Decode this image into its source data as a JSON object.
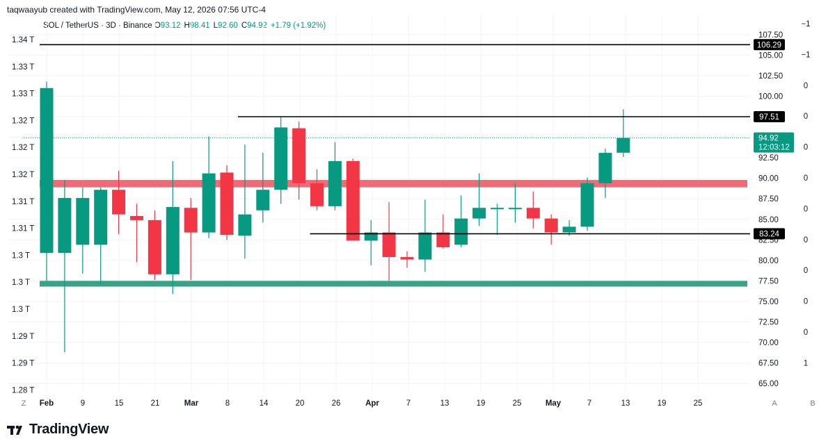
{
  "header": {
    "creator": "taqwaayub created with TradingView.com, May 12, 2026 07:56 UTC-4"
  },
  "legend": {
    "symbol": "SOL / TetherUS · 3D · Binance",
    "o_label": "O",
    "o_value": "93.12",
    "h_label": "H",
    "h_value": "98.41",
    "l_label": "L",
    "l_value": "92.60",
    "c_label": "C",
    "c_value": "94.92",
    "change": "+1.79 (+1.92%)"
  },
  "brand": {
    "name": "TradingView"
  },
  "chart_data": {
    "type": "candlestick",
    "colors": {
      "up": "#089981",
      "down": "#f23645",
      "support_zone": "#2e9e80",
      "resistance_zone": "#f0636f",
      "level_line": "#000000"
    },
    "x_axis": {
      "ticks": [
        "Feb",
        "9",
        "15",
        "21",
        "Mar",
        "8",
        "14",
        "20",
        "26",
        "Apr",
        "7",
        "13",
        "19",
        "25",
        "May",
        "7",
        "13",
        "19",
        "25"
      ],
      "bold_ticks": [
        "Feb",
        "Mar",
        "Apr",
        "May"
      ],
      "left_corner": "Z",
      "right_corner_a": "A",
      "right_corner_b": "B"
    },
    "price_axis": {
      "ticks": [
        "107.50",
        "105.00",
        "102.50",
        "100.00",
        "97.50",
        "95.00",
        "92.50",
        "90.00",
        "87.50",
        "85.00",
        "82.50",
        "80.00",
        "77.50",
        "75.00",
        "72.50",
        "70.00",
        "67.50",
        "65.00"
      ],
      "range": [
        65.0,
        107.5
      ]
    },
    "left_axis": {
      "ticks": [
        "1.34 T",
        "1.33 T",
        "1.33 T",
        "1.32 T",
        "1.32 T",
        "1.32 T",
        "1.31 T",
        "1.31 T",
        "1.3 T",
        "1.3 T",
        "1.3 T",
        "1.29 T",
        "1.29 T",
        "1.28 T"
      ]
    },
    "far_right_axis": {
      "ticks": [
        "−1",
        "−1",
        "0",
        "0",
        "0",
        "0",
        "0",
        "0",
        "0",
        "0",
        "0",
        "1"
      ]
    },
    "price_labels": {
      "top_line": "106.29",
      "upper_line": "97.51",
      "lower_line": "83.24",
      "last_price": "94.92",
      "countdown": "12:03:12"
    },
    "levels": [
      {
        "name": "top-line",
        "price": 106.29,
        "from": 0
      },
      {
        "name": "upper-line",
        "price": 97.51,
        "from": 11
      },
      {
        "name": "lower-line",
        "price": 83.24,
        "from": 15
      }
    ],
    "zones": [
      {
        "name": "resistance",
        "low": 88.9,
        "high": 89.8,
        "from": 0
      },
      {
        "name": "support",
        "low": 76.8,
        "high": 77.5,
        "from": 0
      }
    ],
    "last_price_line": 94.92,
    "candles": [
      {
        "o": 80.9,
        "h": 101.8,
        "l": 77.5,
        "c": 101.0
      },
      {
        "o": 80.9,
        "h": 89.8,
        "l": 68.8,
        "c": 87.6
      },
      {
        "o": 81.9,
        "h": 88.9,
        "l": 78.4,
        "c": 87.6
      },
      {
        "o": 81.9,
        "h": 88.9,
        "l": 77.1,
        "c": 88.6
      },
      {
        "o": 88.6,
        "h": 90.9,
        "l": 83.2,
        "c": 85.6
      },
      {
        "o": 85.4,
        "h": 86.9,
        "l": 79.8,
        "c": 84.9
      },
      {
        "o": 84.9,
        "h": 86.1,
        "l": 77.6,
        "c": 78.3
      },
      {
        "o": 78.3,
        "h": 92.1,
        "l": 75.9,
        "c": 86.5
      },
      {
        "o": 86.4,
        "h": 87.6,
        "l": 77.6,
        "c": 83.4
      },
      {
        "o": 83.4,
        "h": 95.1,
        "l": 82.7,
        "c": 90.6
      },
      {
        "o": 90.7,
        "h": 91.6,
        "l": 82.5,
        "c": 83.1
      },
      {
        "o": 83.0,
        "h": 94.1,
        "l": 80.2,
        "c": 85.6
      },
      {
        "o": 86.1,
        "h": 93.1,
        "l": 84.6,
        "c": 88.6
      },
      {
        "o": 88.6,
        "h": 97.5,
        "l": 86.9,
        "c": 96.2
      },
      {
        "o": 96.1,
        "h": 96.9,
        "l": 87.4,
        "c": 89.4
      },
      {
        "o": 89.4,
        "h": 91.1,
        "l": 86.1,
        "c": 86.6
      },
      {
        "o": 86.6,
        "h": 94.4,
        "l": 86.1,
        "c": 92.1
      },
      {
        "o": 92.1,
        "h": 92.4,
        "l": 82.4,
        "c": 82.4
      },
      {
        "o": 82.4,
        "h": 84.9,
        "l": 79.4,
        "c": 83.4
      },
      {
        "o": 83.4,
        "h": 87.1,
        "l": 77.5,
        "c": 80.4
      },
      {
        "o": 80.4,
        "h": 81.1,
        "l": 79.1,
        "c": 80.1
      },
      {
        "o": 80.1,
        "h": 87.4,
        "l": 78.6,
        "c": 83.4
      },
      {
        "o": 83.4,
        "h": 85.6,
        "l": 81.4,
        "c": 81.6
      },
      {
        "o": 81.9,
        "h": 87.9,
        "l": 81.6,
        "c": 85.1
      },
      {
        "o": 85.1,
        "h": 90.6,
        "l": 84.2,
        "c": 86.4
      },
      {
        "o": 86.4,
        "h": 86.9,
        "l": 83.1,
        "c": 86.4
      },
      {
        "o": 86.4,
        "h": 89.4,
        "l": 84.6,
        "c": 86.4
      },
      {
        "o": 86.4,
        "h": 88.4,
        "l": 83.9,
        "c": 85.1
      },
      {
        "o": 85.1,
        "h": 85.6,
        "l": 81.9,
        "c": 83.4
      },
      {
        "o": 83.4,
        "h": 84.9,
        "l": 83.0,
        "c": 84.1
      },
      {
        "o": 84.1,
        "h": 90.1,
        "l": 83.6,
        "c": 89.4
      },
      {
        "o": 89.4,
        "h": 93.6,
        "l": 87.6,
        "c": 93.1
      },
      {
        "o": 93.12,
        "h": 98.41,
        "l": 92.6,
        "c": 94.92
      }
    ]
  }
}
